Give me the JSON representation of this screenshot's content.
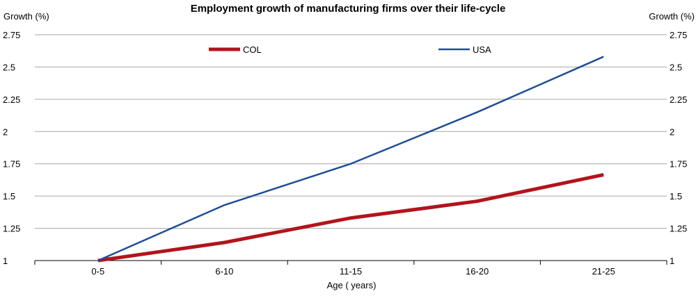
{
  "chart_data": {
    "type": "line",
    "title": "Employment growth of manufacturing firms over their life-cycle",
    "xlabel": "Age ( years)",
    "ylabel_left": "Growth (%)",
    "ylabel_right": "Growth (%)",
    "categories": [
      "0-5",
      "6-10",
      "11-15",
      "16-20",
      "21-25"
    ],
    "ylim": [
      1,
      2.75
    ],
    "yticks": [
      "1",
      "1.25",
      "1.5",
      "1.75",
      "2",
      "2.25",
      "2.5",
      "2.75"
    ],
    "grid": true,
    "legend_placement": "top",
    "series": [
      {
        "name": "COL",
        "color": "#b2141c",
        "values": [
          1.0,
          1.14,
          1.33,
          1.46,
          1.665
        ]
      },
      {
        "name": "USA",
        "color": "#1f4e96",
        "values": [
          1.0,
          1.43,
          1.75,
          2.15,
          2.58
        ]
      }
    ]
  }
}
